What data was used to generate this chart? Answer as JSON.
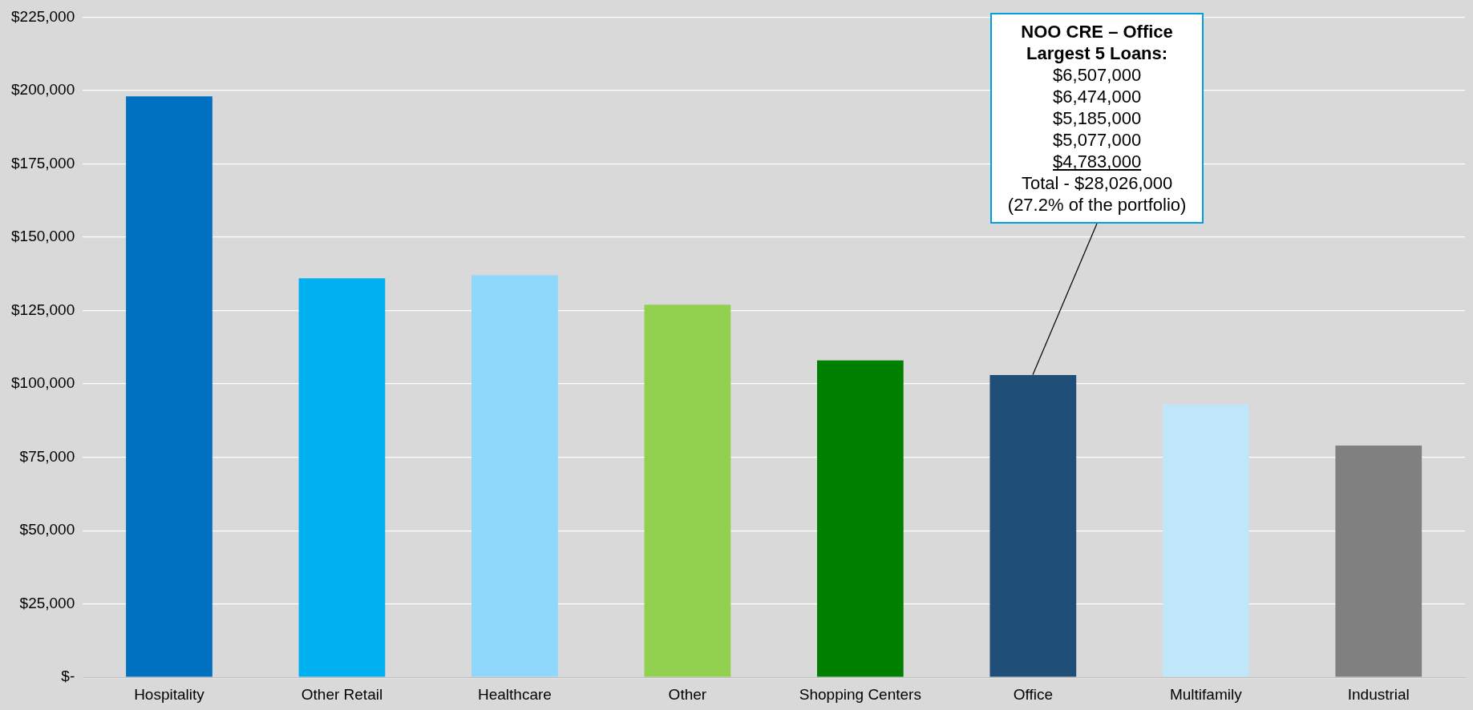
{
  "chart_data": {
    "type": "bar",
    "categories": [
      "Hospitality",
      "Other Retail",
      "Healthcare",
      "Other",
      "Shopping Centers",
      "Office",
      "Multifamily",
      "Industrial"
    ],
    "values": [
      198000,
      136000,
      137000,
      127000,
      108000,
      103000,
      93000,
      79000
    ],
    "colors": [
      "#0070c0",
      "#00b0f0",
      "#8fd8fc",
      "#92d050",
      "#008000",
      "#1f4e79",
      "#c0e6fa",
      "#808080"
    ],
    "ylim": [
      0,
      225000
    ],
    "yticks": [
      {
        "value": 0,
        "label": "$-"
      },
      {
        "value": 25000,
        "label": "$25,000"
      },
      {
        "value": 50000,
        "label": "$50,000"
      },
      {
        "value": 75000,
        "label": "$75,000"
      },
      {
        "value": 100000,
        "label": "$100,000"
      },
      {
        "value": 125000,
        "label": "$125,000"
      },
      {
        "value": 150000,
        "label": "$150,000"
      },
      {
        "value": 175000,
        "label": "$175,000"
      },
      {
        "value": 200000,
        "label": "$200,000"
      },
      {
        "value": 225000,
        "label": "$225,000"
      }
    ],
    "grid": "y",
    "legend": false,
    "annotations": [
      "NOO CRE – Office\nLargest 5 Loans:\n$6,507,000\n$6,474,000\n$5,185,000\n$5,077,000\n$4,783,000\nTotal - $28,026,000\n(27.2% of the portfolio)"
    ]
  }
}
